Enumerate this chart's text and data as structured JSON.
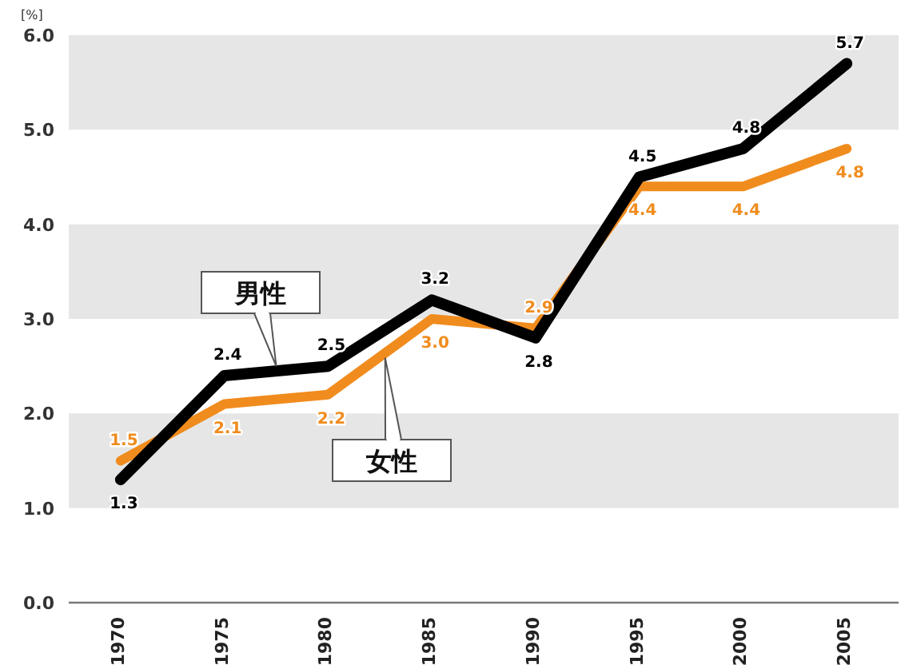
{
  "chart_data": {
    "type": "line",
    "ylabel": "[%]",
    "categories": [
      "1970",
      "1975",
      "1980",
      "1985",
      "1990",
      "1995",
      "2000",
      "2005"
    ],
    "series": [
      {
        "name": "男性",
        "color": "#000000",
        "values": [
          1.3,
          2.4,
          2.5,
          3.2,
          2.8,
          4.5,
          4.8,
          5.7
        ],
        "value_labels": [
          "1.3",
          "2.4",
          "2.5",
          "3.2",
          "2.8",
          "4.5",
          "4.8",
          "5.7"
        ]
      },
      {
        "name": "女性",
        "color": "#f08c1e",
        "values": [
          1.5,
          2.1,
          2.2,
          3.0,
          2.9,
          4.4,
          4.4,
          4.8
        ],
        "value_labels": [
          "1.5",
          "2.1",
          "2.2",
          "3.0",
          "2.9",
          "4.4",
          "4.4",
          "4.8"
        ]
      }
    ],
    "ylim": [
      0,
      6
    ],
    "yticks": [
      {
        "value": 0,
        "label": "0.0"
      },
      {
        "value": 1,
        "label": "1.0"
      },
      {
        "value": 2,
        "label": "2.0"
      },
      {
        "value": 3,
        "label": "3.0"
      },
      {
        "value": 4,
        "label": "4.0"
      },
      {
        "value": 5,
        "label": "5.0"
      },
      {
        "value": 6,
        "label": "6.0"
      }
    ],
    "bands": [
      {
        "axis": "y",
        "from": 1,
        "to": 2,
        "color": "#e6e6e6"
      },
      {
        "axis": "y",
        "from": 3,
        "to": 4,
        "color": "#e6e6e6"
      },
      {
        "axis": "y",
        "from": 5,
        "to": 6,
        "color": "#e6e6e6"
      }
    ],
    "grid": false,
    "legend": false,
    "marker": "none",
    "line_style": "solid"
  }
}
